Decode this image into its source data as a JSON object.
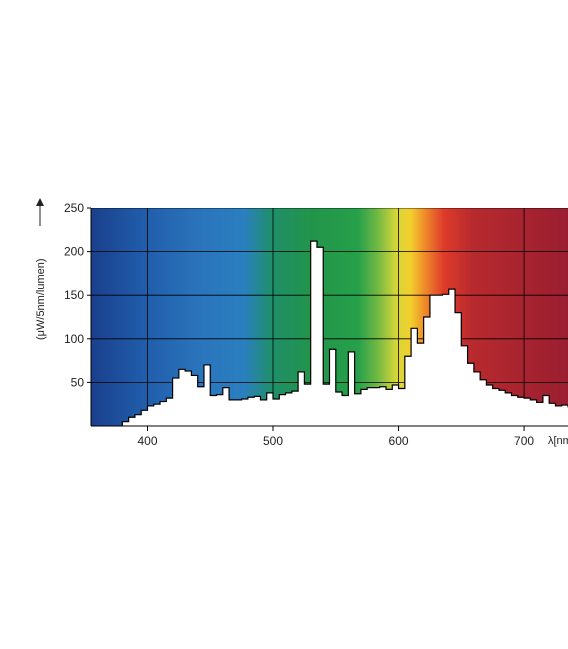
{
  "chart_data": {
    "type": "area",
    "title": "",
    "xlabel": "λ[nm]",
    "ylabel": "(μW/5nm/lumen)",
    "xlim": [
      355,
      735
    ],
    "ylim": [
      0,
      250
    ],
    "x_ticks": [
      400,
      500,
      600,
      700
    ],
    "y_ticks": [
      50,
      100,
      150,
      200,
      250
    ],
    "grid": true,
    "background": "visible-spectrum gradient",
    "series": [
      {
        "x": [
          380,
          385,
          390,
          395,
          400,
          405,
          410,
          415,
          420,
          425,
          430,
          435,
          440,
          445,
          450,
          455,
          460,
          465,
          470,
          475,
          480,
          485,
          490,
          495,
          500,
          505,
          510,
          515,
          520,
          525,
          530,
          535,
          540,
          545,
          550,
          555,
          560,
          565,
          570,
          575,
          580,
          585,
          590,
          595,
          600,
          605,
          610,
          615,
          620,
          625,
          630,
          635,
          640,
          645,
          650,
          655,
          660,
          665,
          670,
          675,
          680,
          685,
          690,
          695,
          700,
          705,
          710,
          715,
          720,
          725,
          730,
          735
        ],
        "values": [
          5,
          10,
          13,
          18,
          23,
          25,
          28,
          32,
          55,
          65,
          63,
          58,
          45,
          70,
          35,
          36,
          44,
          30,
          30,
          31,
          33,
          34,
          30,
          38,
          31,
          36,
          38,
          40,
          62,
          48,
          212,
          205,
          48,
          88,
          39,
          35,
          85,
          37,
          42,
          44,
          44,
          45,
          42,
          47,
          43,
          80,
          112,
          95,
          125,
          150,
          150,
          151,
          157,
          130,
          92,
          72,
          62,
          53,
          47,
          43,
          41,
          38,
          35,
          33,
          32,
          30,
          27,
          35,
          26,
          23,
          24,
          22
        ]
      }
    ]
  },
  "colors": {
    "fill_below_curve": "#ffffff",
    "grid": "#000000",
    "outline": "#000000"
  }
}
